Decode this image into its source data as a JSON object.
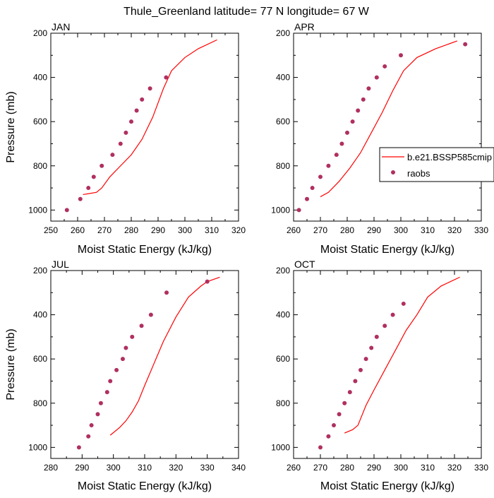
{
  "title": "Thule_Greenland  latitude= 77 N longitude= 67 W",
  "colors": {
    "model": "#ff0000",
    "obs": "#b03060"
  },
  "legend": {
    "model_label": "b.e21.BSSP585cmip",
    "obs_label": "raobs"
  },
  "chart_data": [
    {
      "type": "line",
      "panel_label": "JAN",
      "xlabel": "Moist Static Energy (kJ/kg)",
      "ylabel": "Pressure (mb)",
      "xlim": [
        250,
        320
      ],
      "ylim": [
        1050,
        200
      ],
      "xticks": [
        250,
        260,
        270,
        280,
        290,
        300,
        310,
        320
      ],
      "yticks": [
        200,
        400,
        600,
        800,
        1000
      ],
      "series": [
        {
          "name": "b.e21.BSSP585cmip",
          "kind": "line",
          "x": [
            262,
            267,
            269,
            272,
            276,
            280,
            284,
            288,
            292,
            295,
            300,
            305,
            312
          ],
          "y": [
            930,
            920,
            900,
            850,
            800,
            750,
            680,
            580,
            450,
            370,
            310,
            270,
            230
          ]
        },
        {
          "name": "raobs",
          "kind": "points",
          "x": [
            256,
            261,
            264,
            266,
            269,
            273,
            276,
            278,
            280,
            282,
            284,
            287,
            293
          ],
          "y": [
            1000,
            950,
            900,
            850,
            800,
            750,
            700,
            650,
            600,
            550,
            500,
            450,
            400
          ]
        }
      ]
    },
    {
      "type": "line",
      "panel_label": "APR",
      "xlabel": "Moist Static Energy (kJ/kg)",
      "ylabel": "",
      "xlim": [
        260,
        330
      ],
      "ylim": [
        1050,
        200
      ],
      "xticks": [
        260,
        270,
        280,
        290,
        300,
        310,
        320,
        330
      ],
      "yticks": [
        200,
        400,
        600,
        800,
        1000
      ],
      "legend": "inside-right",
      "series": [
        {
          "name": "b.e21.BSSP585cmip",
          "kind": "line",
          "x": [
            270,
            273,
            277,
            281,
            285,
            289,
            293,
            297,
            301,
            306,
            313,
            321
          ],
          "y": [
            940,
            920,
            870,
            810,
            740,
            650,
            560,
            460,
            370,
            310,
            270,
            235
          ]
        },
        {
          "name": "raobs",
          "kind": "points",
          "x": [
            262,
            265,
            267,
            270,
            273,
            276,
            278,
            280,
            282,
            284,
            286,
            288,
            291,
            294,
            300,
            324
          ],
          "y": [
            1000,
            950,
            900,
            850,
            800,
            750,
            700,
            650,
            600,
            550,
            500,
            450,
            400,
            350,
            300,
            250
          ]
        }
      ]
    },
    {
      "type": "line",
      "panel_label": "JUL",
      "xlabel": "Moist Static Energy (kJ/kg)",
      "ylabel": "Pressure (mb)",
      "xlim": [
        280,
        340
      ],
      "ylim": [
        1050,
        200
      ],
      "xticks": [
        280,
        290,
        300,
        310,
        320,
        330,
        340
      ],
      "yticks": [
        200,
        400,
        600,
        800,
        1000
      ],
      "series": [
        {
          "name": "b.e21.BSSP585cmip",
          "kind": "line",
          "x": [
            299,
            302,
            304,
            306,
            308,
            310,
            313,
            316,
            320,
            324,
            328,
            330,
            334
          ],
          "y": [
            945,
            910,
            880,
            840,
            790,
            720,
            620,
            520,
            410,
            320,
            270,
            250,
            230
          ]
        },
        {
          "name": "raobs",
          "kind": "points",
          "x": [
            289,
            292,
            293,
            295,
            296,
            298,
            299,
            301,
            303,
            304,
            306,
            309,
            312,
            317,
            330
          ],
          "y": [
            1000,
            950,
            900,
            850,
            800,
            750,
            700,
            650,
            600,
            550,
            500,
            450,
            400,
            300,
            250
          ]
        }
      ]
    },
    {
      "type": "line",
      "panel_label": "OCT",
      "xlabel": "Moist Static Energy (kJ/kg)",
      "ylabel": "",
      "xlim": [
        260,
        330
      ],
      "ylim": [
        1050,
        200
      ],
      "xticks": [
        260,
        270,
        280,
        290,
        300,
        310,
        320,
        330
      ],
      "yticks": [
        200,
        400,
        600,
        800,
        1000
      ],
      "series": [
        {
          "name": "b.e21.BSSP585cmip",
          "kind": "line",
          "x": [
            279,
            282,
            284,
            285,
            287,
            290,
            294,
            298,
            302,
            306,
            310,
            315,
            322
          ],
          "y": [
            935,
            920,
            900,
            870,
            810,
            740,
            650,
            560,
            470,
            400,
            320,
            270,
            230
          ]
        },
        {
          "name": "raobs",
          "kind": "points",
          "x": [
            270,
            273,
            275,
            277,
            279,
            281,
            283,
            285,
            287,
            289,
            291,
            294,
            297,
            301
          ],
          "y": [
            1000,
            950,
            900,
            850,
            800,
            750,
            700,
            650,
            600,
            550,
            500,
            450,
            400,
            350
          ]
        }
      ]
    }
  ]
}
